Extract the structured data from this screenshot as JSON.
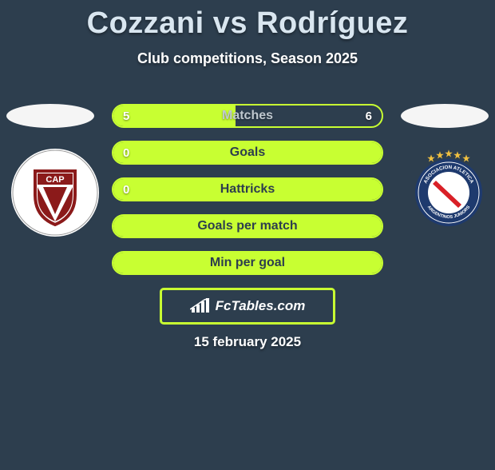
{
  "title": "Cozzani vs Rodríguez",
  "subtitle": "Club competitions, Season 2025",
  "date": "15 february 2025",
  "attribution": "FcTables.com",
  "colors": {
    "background": "#2d3e4e",
    "accent": "#c8ff32",
    "title": "#d9e6f0",
    "bar_label": "#bfc8cf",
    "silhouette": "#f5f5f5"
  },
  "left_club": {
    "name": "CAP",
    "crest_primary": "#8b1a1a",
    "crest_secondary": "#ffffff"
  },
  "right_club": {
    "name": "Argentinos Juniors",
    "crest_primary": "#1e3a6e",
    "crest_secondary": "#d92027",
    "crest_stars": "#f0c040"
  },
  "bars": [
    {
      "label": "Matches",
      "left": "5",
      "right": "6",
      "fill_pct": 45.5
    },
    {
      "label": "Goals",
      "left": "0",
      "right": "",
      "fill_pct": 100
    },
    {
      "label": "Hattricks",
      "left": "0",
      "right": "",
      "fill_pct": 100
    },
    {
      "label": "Goals per match",
      "left": "",
      "right": "",
      "fill_pct": 100
    },
    {
      "label": "Min per goal",
      "left": "",
      "right": "",
      "fill_pct": 100
    }
  ]
}
